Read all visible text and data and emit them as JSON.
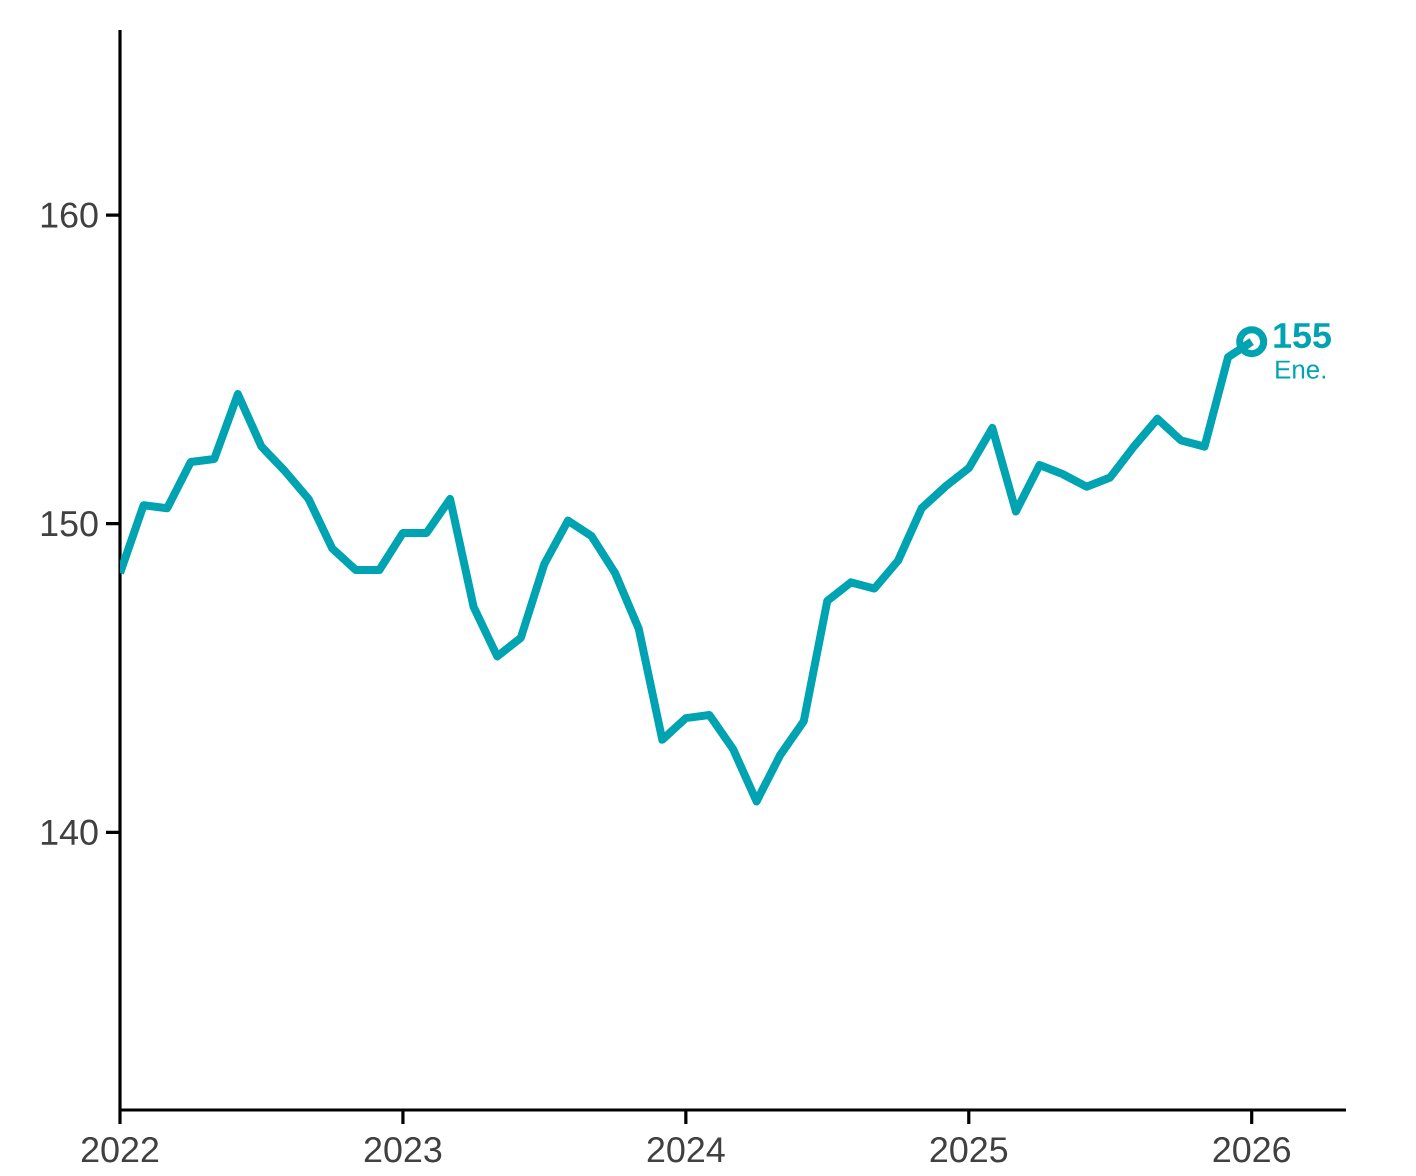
{
  "chart_data": {
    "type": "line",
    "x": [
      "2022-01",
      "2022-02",
      "2022-03",
      "2022-04",
      "2022-05",
      "2022-06",
      "2022-07",
      "2022-08",
      "2022-09",
      "2022-10",
      "2022-11",
      "2022-12",
      "2023-01",
      "2023-02",
      "2023-03",
      "2023-04",
      "2023-05",
      "2023-06",
      "2023-07",
      "2023-08",
      "2023-09",
      "2023-10",
      "2023-11",
      "2023-12",
      "2024-01",
      "2024-02",
      "2024-03",
      "2024-04",
      "2024-05",
      "2024-06",
      "2024-07",
      "2024-08",
      "2024-09",
      "2024-10",
      "2024-11",
      "2024-12",
      "2025-01",
      "2025-02",
      "2025-03",
      "2025-04",
      "2025-05",
      "2025-06",
      "2025-07",
      "2025-08",
      "2025-09",
      "2025-10",
      "2025-11",
      "2025-12",
      "2026-01"
    ],
    "series": [
      {
        "color": "#00a3b1",
        "marker": "none",
        "values": [
          148.4,
          150.6,
          150.5,
          152.0,
          152.1,
          154.2,
          152.5,
          151.7,
          150.8,
          149.2,
          148.5,
          148.5,
          149.7,
          149.7,
          150.8,
          147.3,
          145.7,
          146.3,
          148.7,
          150.1,
          149.6,
          148.4,
          146.6,
          143.0,
          143.7,
          143.8,
          142.7,
          141.0,
          142.5,
          143.6,
          147.5,
          148.1,
          147.9,
          148.8,
          150.5,
          151.2,
          151.8,
          153.1,
          150.4,
          151.9,
          151.6,
          151.2,
          151.5,
          152.5,
          153.4,
          152.7,
          152.5,
          155.4,
          155.9
        ]
      },
      {
        "type": "scatter",
        "color": "#00a3b1",
        "marker": "circle",
        "x": [
          "2026-01"
        ],
        "values": [
          155.9
        ]
      }
    ],
    "annotations": [
      {
        "text": "155",
        "x": "2026-01",
        "y": 155.9
      },
      {
        "text": "Ene.",
        "x": "2026-01",
        "y": 155.9
      }
    ],
    "xlim": [
      "2022-01",
      "2026-05"
    ],
    "xticks": [
      "2022",
      "2023",
      "2024",
      "2025",
      "2026"
    ],
    "ylim": [
      131,
      166
    ],
    "yticks": [
      140,
      150,
      160
    ],
    "grid": false
  }
}
